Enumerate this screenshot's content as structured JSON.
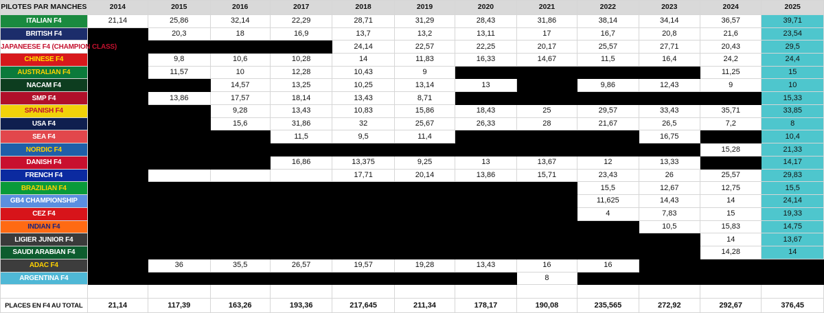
{
  "header": {
    "corner": "PILOTES PAR MANCHES",
    "years": [
      "2014",
      "2015",
      "2016",
      "2017",
      "2018",
      "2019",
      "2020",
      "2021",
      "2022",
      "2023",
      "2024",
      "2025"
    ]
  },
  "colors": {
    "black": "#000000",
    "col_2025": "#4ec6cd",
    "header": "#d9d9d9"
  },
  "rows": [
    {
      "label": "ITALIAN F4",
      "bg": "#1a8a3f",
      "fg": "#ffffff",
      "cells": [
        "21,14",
        "25,86",
        "32,14",
        "22,29",
        "28,71",
        "31,29",
        "28,43",
        "31,86",
        "38,14",
        "34,14",
        "36,57",
        "39,71"
      ]
    },
    {
      "label": "BRITISH F4",
      "bg": "#1c2d6b",
      "fg": "#ffffff",
      "cells": [
        null,
        "20,3",
        "18",
        "16,9",
        "13,7",
        "13,2",
        "13,11",
        "17",
        "16,7",
        "20,8",
        "21,6",
        "23,54"
      ]
    },
    {
      "label": "JAPANEESE F4 (CHAMPION CLASS)",
      "bg": "#ffffff",
      "fg": "#c4122f",
      "cells": [
        null,
        null,
        null,
        null,
        "24,14",
        "22,57",
        "22,25",
        "20,17",
        "25,57",
        "27,71",
        "20,43",
        "29,5"
      ]
    },
    {
      "label": "CHINESE F4",
      "bg": "#d7191c",
      "fg": "#ffe500",
      "cells": [
        null,
        "9,8",
        "10,6",
        "10,28",
        "14",
        "11,83",
        "16,33",
        "14,67",
        "11,5",
        "16,4",
        "24,2",
        "24,4"
      ]
    },
    {
      "label": "AUSTRALIAN F4",
      "bg": "#0b7a3b",
      "fg": "#ffd200",
      "cells": [
        null,
        "11,57",
        "10",
        "12,28",
        "10,43",
        "9",
        null,
        null,
        null,
        null,
        "11,25",
        "15"
      ]
    },
    {
      "label": "NACAM F4",
      "bg": "#0d3d1f",
      "fg": "#ffffff",
      "cells": [
        null,
        null,
        "14,57",
        "13,25",
        "10,25",
        "13,14",
        "13",
        null,
        "9,86",
        "12,43",
        "9",
        "10"
      ]
    },
    {
      "label": "SMP F4",
      "bg": "#b0102a",
      "fg": "#ffffff",
      "cells": [
        null,
        "13,86",
        "17,57",
        "18,14",
        "13,43",
        "8,71",
        null,
        null,
        null,
        null,
        null,
        "15,33"
      ]
    },
    {
      "label": "SPANISH F4",
      "bg": "#f2d20a",
      "fg": "#c4122f",
      "cells": [
        null,
        null,
        "9,28",
        "13,43",
        "10,83",
        "15,86",
        "18,43",
        "25",
        "29,57",
        "33,43",
        "35,71",
        "33,85"
      ]
    },
    {
      "label": "USA F4",
      "bg": "#0f1f4f",
      "fg": "#ffffff",
      "cells": [
        null,
        null,
        "15,6",
        "31,86",
        "32",
        "25,67",
        "26,33",
        "28",
        "21,67",
        "26,5",
        "7,2",
        "8"
      ]
    },
    {
      "label": "SEA F4",
      "bg": "#e2474c",
      "fg": "#ffffff",
      "cells": [
        null,
        null,
        null,
        "11,5",
        "9,5",
        "11,4",
        null,
        null,
        null,
        "16,75",
        null,
        "10,4"
      ]
    },
    {
      "label": "NORDIC F4",
      "bg": "#1f5fa8",
      "fg": "#ffd200",
      "cells": [
        null,
        null,
        null,
        null,
        null,
        null,
        null,
        null,
        null,
        null,
        "15,28",
        "21,33"
      ]
    },
    {
      "label": "DANISH F4",
      "bg": "#c8102e",
      "fg": "#ffffff",
      "cells": [
        null,
        null,
        null,
        "16,86",
        "13,375",
        "9,25",
        "13",
        "13,67",
        "12",
        "13,33",
        null,
        "14,17"
      ]
    },
    {
      "label": "FRENCH F4",
      "bg": "#0b2aa0",
      "fg": "#ffffff",
      "cells": [
        null,
        "",
        "",
        "",
        "17,71",
        "20,14",
        "13,86",
        "15,71",
        "23,43",
        "26",
        "25,57",
        "29,83"
      ]
    },
    {
      "label": "BRAZILIAN F4",
      "bg": "#0a9a3a",
      "fg": "#ffd200",
      "cells": [
        null,
        null,
        null,
        null,
        null,
        null,
        null,
        null,
        "15,5",
        "12,67",
        "12,75",
        "15,5"
      ]
    },
    {
      "label": "GB4 CHAMPIONSHIP",
      "bg": "#5b8fe0",
      "fg": "#ffffff",
      "cells": [
        null,
        null,
        null,
        null,
        null,
        null,
        null,
        null,
        "11,625",
        "14,43",
        "14",
        "24,14"
      ]
    },
    {
      "label": "CEZ F4",
      "bg": "#d7141a",
      "fg": "#ffffff",
      "cells": [
        null,
        null,
        null,
        null,
        null,
        null,
        null,
        null,
        "4",
        "7,83",
        "15",
        "19,33"
      ]
    },
    {
      "label": "INDIAN F4",
      "bg": "#ff6a13",
      "fg": "#1a237e",
      "cells": [
        null,
        null,
        null,
        null,
        null,
        null,
        null,
        null,
        null,
        "10,5",
        "15,83",
        "14,75"
      ]
    },
    {
      "label": "LIGIER JUNIOR F4",
      "bg": "#3a3a3a",
      "fg": "#ffffff",
      "cells": [
        null,
        null,
        null,
        null,
        null,
        null,
        null,
        null,
        null,
        null,
        "14",
        "13,67"
      ]
    },
    {
      "label": "SAUDI ARABIAN F4",
      "bg": "#0d5c2e",
      "fg": "#ffffff",
      "cells": [
        null,
        null,
        null,
        null,
        null,
        null,
        null,
        null,
        null,
        null,
        "14,28",
        "14"
      ]
    },
    {
      "label": "ADAC F4",
      "bg": "#3d3d3d",
      "fg": "#ffd200",
      "cells": [
        null,
        "36",
        "35,5",
        "26,57",
        "19,57",
        "19,28",
        "13,43",
        "16",
        "16",
        null,
        null,
        null
      ]
    },
    {
      "label": "ARGENTINA F4",
      "bg": "#4fb8d6",
      "fg": "#ffffff",
      "cells": [
        null,
        null,
        null,
        null,
        null,
        null,
        null,
        "8",
        null,
        null,
        null,
        null
      ]
    }
  ],
  "total": {
    "label": "PLACES EN F4 AU TOTAL",
    "cells": [
      "21,14",
      "117,39",
      "163,26",
      "193,36",
      "217,645",
      "211,34",
      "178,17",
      "190,08",
      "235,565",
      "272,92",
      "292,67",
      "376,45"
    ]
  }
}
